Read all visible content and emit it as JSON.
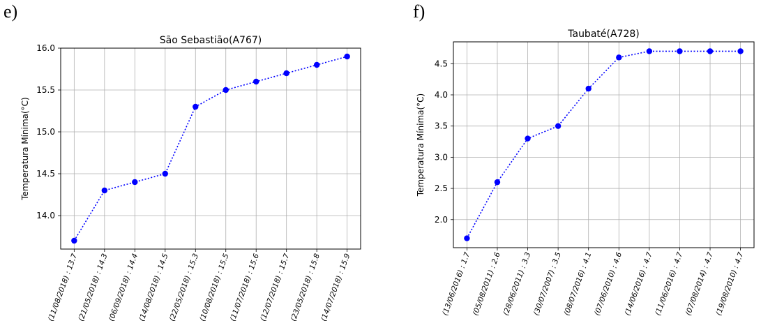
{
  "panels": [
    {
      "letter": "e)"
    },
    {
      "letter": "f)"
    }
  ],
  "chart_data": [
    {
      "type": "line",
      "title": "São Sebastião(A767)",
      "ylabel": "Temperatura Mínima(°C)",
      "xlabel": "",
      "categories": [
        "(11/08/2018) : 13.7",
        "(21/05/2018) : 14.3",
        "(06/09/2018) : 14.4",
        "(14/08/2018) : 14.5",
        "(22/05/2018) : 15.3",
        "(10/08/2018) : 15.5",
        "(11/07/2018) : 15.6",
        "(12/07/2018) : 15.7",
        "(23/05/2018) : 15.8",
        "(14/07/2018) : 15.9"
      ],
      "series": [
        {
          "values": [
            13.7,
            14.3,
            14.4,
            14.5,
            15.3,
            15.5,
            15.6,
            15.7,
            15.8,
            15.9
          ]
        }
      ],
      "yticks": [
        "14.0",
        "14.5",
        "15.0",
        "15.5",
        "16.0"
      ],
      "ylim": [
        13.6,
        16.0
      ],
      "grid": true,
      "color": "#0000ff",
      "line_style": "dotted",
      "marker": "circle"
    },
    {
      "type": "line",
      "title": "Taubaté(A728)",
      "ylabel": "Temperatura Mínima(°C)",
      "xlabel": "",
      "categories": [
        "(13/06/2016) : 1.7",
        "(05/08/2011) : 2.6",
        "(28/06/2011) : 3.3",
        "(30/07/2007) : 3.5",
        "(08/07/2016) : 4.1",
        "(07/06/2010) : 4.6",
        "(14/06/2016) : 4.7",
        "(11/06/2016) : 4.7",
        "(07/08/2014) : 4.7",
        "(19/08/2010) : 4.7"
      ],
      "series": [
        {
          "values": [
            1.7,
            2.6,
            3.3,
            3.5,
            4.1,
            4.6,
            4.7,
            4.7,
            4.7,
            4.7
          ]
        }
      ],
      "yticks": [
        "2.0",
        "2.5",
        "3.0",
        "3.5",
        "4.0",
        "4.5"
      ],
      "ylim": [
        1.55,
        4.85
      ],
      "grid": true,
      "color": "#0000ff",
      "line_style": "dotted",
      "marker": "circle"
    }
  ]
}
